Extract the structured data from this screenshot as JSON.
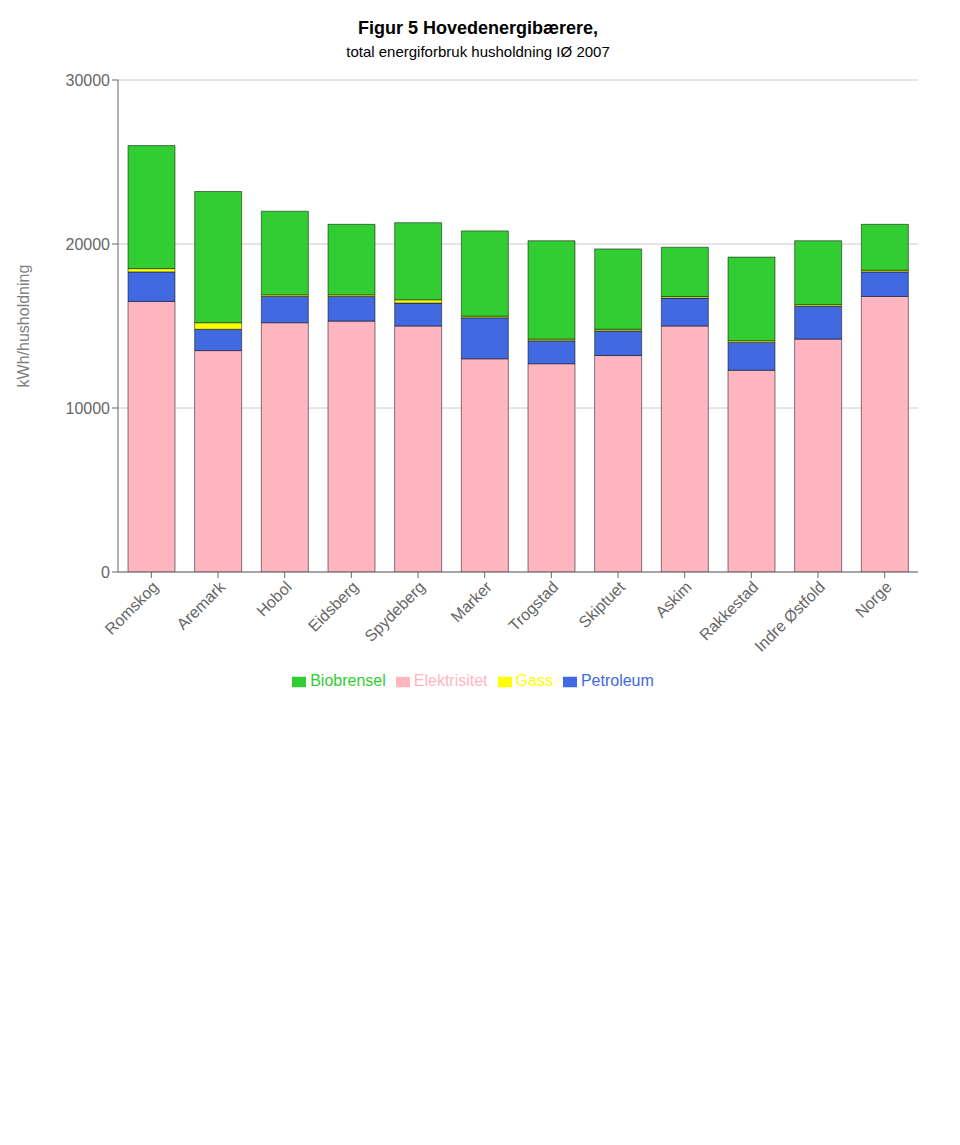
{
  "chart_data": {
    "type": "bar",
    "title": "Figur 5 Hovedenergibærere,",
    "subtitle": "total energiforbruk husholdning IØ 2007",
    "categories": [
      "Romskog",
      "Aremark",
      "Hobol",
      "Eidsberg",
      "Spydeberg",
      "Marker",
      "Trogstad",
      "Skiptuet",
      "Askim",
      "Rakkestad",
      "Indre Østfold",
      "Norge"
    ],
    "series": [
      {
        "name": "Elektrisitet",
        "color": "#FFB6C1",
        "values": [
          16500,
          13500,
          15200,
          15300,
          15000,
          13000,
          12700,
          13200,
          15000,
          12300,
          14200,
          16800
        ]
      },
      {
        "name": "Petroleum",
        "color": "#4169E1",
        "values": [
          1800,
          1300,
          1600,
          1500,
          1400,
          2500,
          1400,
          1500,
          1700,
          1700,
          2000,
          1500
        ]
      },
      {
        "name": "Gass",
        "color": "#FFFF00",
        "values": [
          200,
          400,
          100,
          100,
          200,
          100,
          100,
          100,
          100,
          100,
          100,
          100
        ]
      },
      {
        "name": "Biobrensel",
        "color": "#32CD32",
        "values": [
          7500,
          8000,
          5100,
          4300,
          4700,
          5200,
          6000,
          4900,
          3000,
          5100,
          3900,
          2800
        ]
      }
    ],
    "stacked": true,
    "ylabel": "kWh/husholdning",
    "ylim": [
      0,
      30000
    ],
    "yticks": [
      0,
      10000,
      20000,
      30000
    ],
    "grid": true,
    "legend": "bottom"
  }
}
